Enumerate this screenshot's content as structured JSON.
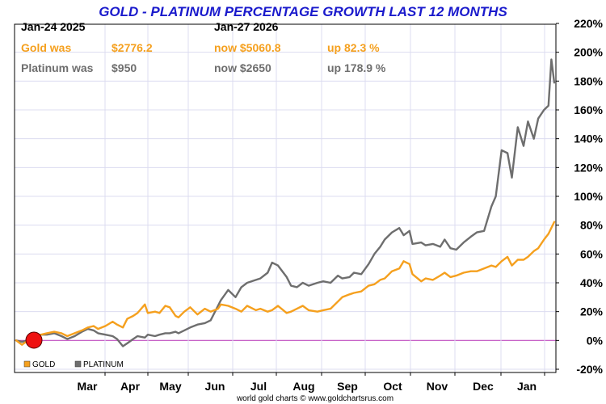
{
  "chart_data": {
    "type": "line",
    "title": "GOLD - PLATINUM PERCENTAGE GROWTH LAST 12 MONTHS",
    "start_date": "Jan-24  2025",
    "end_date": "Jan-27  2026",
    "gold_row": {
      "label": "Gold was",
      "start": "$2776.2",
      "end": "now $5060.8",
      "change": "up 82.3 %"
    },
    "platinum_row": {
      "label": "Platinum was",
      "start": "$950",
      "end": "now $2650",
      "change": "up 178.9 %"
    },
    "y_ticks": [
      "220%",
      "200%",
      "180%",
      "160%",
      "140%",
      "120%",
      "100%",
      "80%",
      "60%",
      "40%",
      "20%",
      "0%",
      "-20%"
    ],
    "ylim": [
      -20,
      220
    ],
    "x_ticks": [
      "Mar",
      "Apr",
      "May",
      "Jun",
      "Jul",
      "Aug",
      "Sep",
      "Oct",
      "Nov",
      "Dec",
      "Jan"
    ],
    "grid": true,
    "legend_position": "bottom-left",
    "credit": "world gold charts © www.goldchartsrus.com",
    "series": [
      {
        "name": "GOLD",
        "color": "#f5a01e",
        "points": [
          [
            "2025-01-24",
            0
          ],
          [
            "2025-01-28",
            -3
          ],
          [
            "2025-02-01",
            0
          ],
          [
            "2025-02-05",
            3
          ],
          [
            "2025-02-10",
            4
          ],
          [
            "2025-02-14",
            5
          ],
          [
            "2025-02-19",
            6
          ],
          [
            "2025-02-24",
            5
          ],
          [
            "2025-02-28",
            3
          ],
          [
            "2025-03-05",
            5
          ],
          [
            "2025-03-10",
            7
          ],
          [
            "2025-03-14",
            9
          ],
          [
            "2025-03-18",
            10
          ],
          [
            "2025-03-21",
            8
          ],
          [
            "2025-03-26",
            10
          ],
          [
            "2025-03-31",
            13
          ],
          [
            "2025-04-03",
            11
          ],
          [
            "2025-04-07",
            9
          ],
          [
            "2025-04-10",
            15
          ],
          [
            "2025-04-14",
            17
          ],
          [
            "2025-04-17",
            19
          ],
          [
            "2025-04-22",
            25
          ],
          [
            "2025-04-24",
            19
          ],
          [
            "2025-04-29",
            20
          ],
          [
            "2025-05-02",
            19
          ],
          [
            "2025-05-06",
            24
          ],
          [
            "2025-05-09",
            23
          ],
          [
            "2025-05-13",
            17
          ],
          [
            "2025-05-15",
            16
          ],
          [
            "2025-05-19",
            20
          ],
          [
            "2025-05-23",
            23
          ],
          [
            "2025-05-28",
            18
          ],
          [
            "2025-06-02",
            22
          ],
          [
            "2025-06-06",
            20
          ],
          [
            "2025-06-11",
            22
          ],
          [
            "2025-06-13",
            25
          ],
          [
            "2025-06-18",
            24
          ],
          [
            "2025-06-23",
            22
          ],
          [
            "2025-06-27",
            20
          ],
          [
            "2025-07-01",
            24
          ],
          [
            "2025-07-07",
            21
          ],
          [
            "2025-07-10",
            22
          ],
          [
            "2025-07-15",
            20
          ],
          [
            "2025-07-18",
            21
          ],
          [
            "2025-07-22",
            24
          ],
          [
            "2025-07-28",
            19
          ],
          [
            "2025-07-31",
            20
          ],
          [
            "2025-08-04",
            22
          ],
          [
            "2025-08-08",
            24
          ],
          [
            "2025-08-12",
            21
          ],
          [
            "2025-08-18",
            20
          ],
          [
            "2025-08-22",
            21
          ],
          [
            "2025-08-27",
            22
          ],
          [
            "2025-09-01",
            27
          ],
          [
            "2025-09-04",
            30
          ],
          [
            "2025-09-09",
            32
          ],
          [
            "2025-09-12",
            33
          ],
          [
            "2025-09-17",
            34
          ],
          [
            "2025-09-22",
            38
          ],
          [
            "2025-09-26",
            39
          ],
          [
            "2025-09-30",
            42
          ],
          [
            "2025-10-03",
            43
          ],
          [
            "2025-10-08",
            48
          ],
          [
            "2025-10-13",
            50
          ],
          [
            "2025-10-16",
            55
          ],
          [
            "2025-10-20",
            53
          ],
          [
            "2025-10-22",
            46
          ],
          [
            "2025-10-28",
            41
          ],
          [
            "2025-10-31",
            43
          ],
          [
            "2025-11-05",
            42
          ],
          [
            "2025-11-10",
            45
          ],
          [
            "2025-11-13",
            47
          ],
          [
            "2025-11-17",
            44
          ],
          [
            "2025-11-21",
            45
          ],
          [
            "2025-11-26",
            47
          ],
          [
            "2025-12-01",
            48
          ],
          [
            "2025-12-05",
            48
          ],
          [
            "2025-12-10",
            50
          ],
          [
            "2025-12-15",
            52
          ],
          [
            "2025-12-18",
            51
          ],
          [
            "2025-12-22",
            55
          ],
          [
            "2025-12-26",
            58
          ],
          [
            "2025-12-29",
            52
          ],
          [
            "2026-01-02",
            56
          ],
          [
            "2026-01-06",
            56
          ],
          [
            "2026-01-09",
            58
          ],
          [
            "2026-01-13",
            62
          ],
          [
            "2026-01-16",
            64
          ],
          [
            "2026-01-20",
            70
          ],
          [
            "2026-01-23",
            74
          ],
          [
            "2026-01-27",
            82.3
          ]
        ]
      },
      {
        "name": "PLATINUM",
        "color": "#6e6e6e",
        "points": [
          [
            "2025-01-24",
            0
          ],
          [
            "2025-01-28",
            -1
          ],
          [
            "2025-02-01",
            0
          ],
          [
            "2025-02-05",
            3
          ],
          [
            "2025-02-10",
            4
          ],
          [
            "2025-02-14",
            4
          ],
          [
            "2025-02-19",
            5
          ],
          [
            "2025-02-24",
            3
          ],
          [
            "2025-02-28",
            1
          ],
          [
            "2025-03-05",
            3
          ],
          [
            "2025-03-10",
            6
          ],
          [
            "2025-03-14",
            8
          ],
          [
            "2025-03-18",
            7
          ],
          [
            "2025-03-21",
            5
          ],
          [
            "2025-03-26",
            4
          ],
          [
            "2025-03-31",
            3
          ],
          [
            "2025-04-03",
            1
          ],
          [
            "2025-04-07",
            -4
          ],
          [
            "2025-04-10",
            -2
          ],
          [
            "2025-04-14",
            1
          ],
          [
            "2025-04-17",
            3
          ],
          [
            "2025-04-22",
            2
          ],
          [
            "2025-04-24",
            4
          ],
          [
            "2025-04-29",
            3
          ],
          [
            "2025-05-02",
            4
          ],
          [
            "2025-05-06",
            5
          ],
          [
            "2025-05-09",
            5
          ],
          [
            "2025-05-13",
            6
          ],
          [
            "2025-05-15",
            5
          ],
          [
            "2025-05-19",
            7
          ],
          [
            "2025-05-23",
            9
          ],
          [
            "2025-05-28",
            11
          ],
          [
            "2025-06-02",
            12
          ],
          [
            "2025-06-06",
            14
          ],
          [
            "2025-06-11",
            24
          ],
          [
            "2025-06-13",
            28
          ],
          [
            "2025-06-18",
            35
          ],
          [
            "2025-06-23",
            30
          ],
          [
            "2025-06-27",
            37
          ],
          [
            "2025-07-01",
            40
          ],
          [
            "2025-07-07",
            42
          ],
          [
            "2025-07-10",
            43
          ],
          [
            "2025-07-15",
            47
          ],
          [
            "2025-07-18",
            54
          ],
          [
            "2025-07-22",
            52
          ],
          [
            "2025-07-28",
            44
          ],
          [
            "2025-07-31",
            38
          ],
          [
            "2025-08-04",
            37
          ],
          [
            "2025-08-08",
            40
          ],
          [
            "2025-08-12",
            38
          ],
          [
            "2025-08-18",
            40
          ],
          [
            "2025-08-22",
            41
          ],
          [
            "2025-08-27",
            40
          ],
          [
            "2025-09-01",
            45
          ],
          [
            "2025-09-04",
            43
          ],
          [
            "2025-09-09",
            44
          ],
          [
            "2025-09-12",
            47
          ],
          [
            "2025-09-17",
            46
          ],
          [
            "2025-09-22",
            53
          ],
          [
            "2025-09-26",
            60
          ],
          [
            "2025-09-30",
            65
          ],
          [
            "2025-10-03",
            70
          ],
          [
            "2025-10-08",
            75
          ],
          [
            "2025-10-13",
            78
          ],
          [
            "2025-10-16",
            73
          ],
          [
            "2025-10-20",
            76
          ],
          [
            "2025-10-22",
            67
          ],
          [
            "2025-10-28",
            68
          ],
          [
            "2025-10-31",
            66
          ],
          [
            "2025-11-05",
            67
          ],
          [
            "2025-11-10",
            65
          ],
          [
            "2025-11-13",
            70
          ],
          [
            "2025-11-17",
            64
          ],
          [
            "2025-11-21",
            63
          ],
          [
            "2025-11-26",
            68
          ],
          [
            "2025-12-01",
            72
          ],
          [
            "2025-12-05",
            75
          ],
          [
            "2025-12-10",
            76
          ],
          [
            "2025-12-15",
            93
          ],
          [
            "2025-12-18",
            100
          ],
          [
            "2025-12-22",
            132
          ],
          [
            "2025-12-26",
            130
          ],
          [
            "2025-12-29",
            113
          ],
          [
            "2026-01-02",
            148
          ],
          [
            "2026-01-06",
            135
          ],
          [
            "2026-01-09",
            152
          ],
          [
            "2026-01-13",
            140
          ],
          [
            "2026-01-16",
            154
          ],
          [
            "2026-01-20",
            160
          ],
          [
            "2026-01-23",
            163
          ],
          [
            "2026-01-25",
            195
          ],
          [
            "2026-01-27",
            178.9
          ]
        ]
      }
    ]
  }
}
